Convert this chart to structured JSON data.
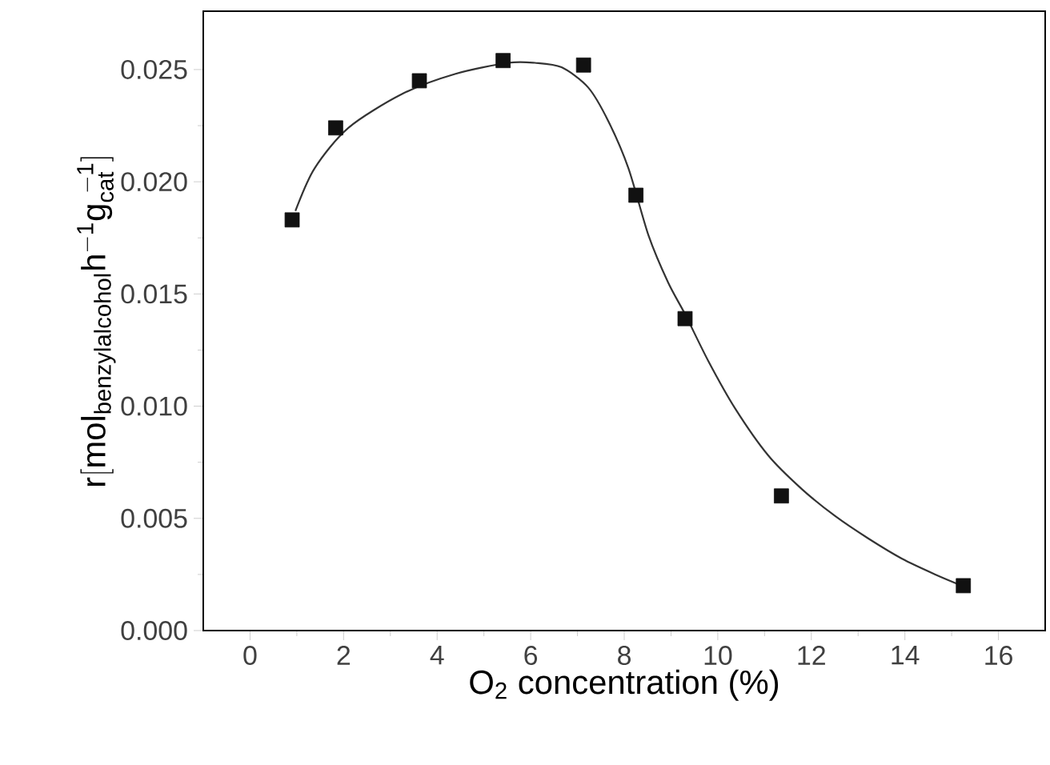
{
  "chart_data": {
    "type": "scatter",
    "xlabel": "O$_{2}$ concentration (%)",
    "ylabel": "\\mathrm{r[mol_{benzylalcohol}h^{-1}g_{cat}^{\\ -1}]}",
    "xlim": [
      -1,
      17
    ],
    "ylim": [
      0,
      0.0276
    ],
    "xticks": [
      0,
      2,
      4,
      6,
      8,
      10,
      12,
      14,
      16
    ],
    "yticks": [
      {
        "value": 0,
        "label": "0.000"
      },
      {
        "value": 0.005,
        "label": "0.005"
      },
      {
        "value": 0.01,
        "label": "0.010"
      },
      {
        "value": 0.015,
        "label": "0.015"
      },
      {
        "value": 0.02,
        "label": "0.020"
      },
      {
        "value": 0.025,
        "label": "0.025"
      }
    ],
    "series": [
      {
        "color": "#111111",
        "marker": "square",
        "x": [
          0.9,
          1.83,
          3.62,
          5.41,
          7.13,
          8.25,
          9.3,
          11.36,
          15.25
        ],
        "values": [
          0.0183,
          0.0224,
          0.0245,
          0.0254,
          0.0252,
          0.0194,
          0.0139,
          0.006,
          0.002
        ]
      },
      {
        "type": "line",
        "color": "#333333",
        "marker": "none",
        "line_style": "solid",
        "x": [
          0.97,
          1.38,
          2.1,
          3.24,
          4.38,
          5.52,
          6.09,
          6.66,
          7.23,
          7.66,
          8.09,
          8.52,
          8.94,
          9.3,
          9.8,
          10.37,
          11.08,
          11.8,
          12.51,
          13.22,
          13.94,
          14.65,
          15.22
        ],
        "values": [
          0.0187,
          0.0206,
          0.0224,
          0.0239,
          0.0248,
          0.0253,
          0.0253,
          0.0251,
          0.0242,
          0.0227,
          0.0206,
          0.0176,
          0.0155,
          0.0141,
          0.012,
          0.0099,
          0.0078,
          0.0063,
          0.0051,
          0.0041,
          0.0032,
          0.0025,
          0.002
        ]
      }
    ]
  }
}
